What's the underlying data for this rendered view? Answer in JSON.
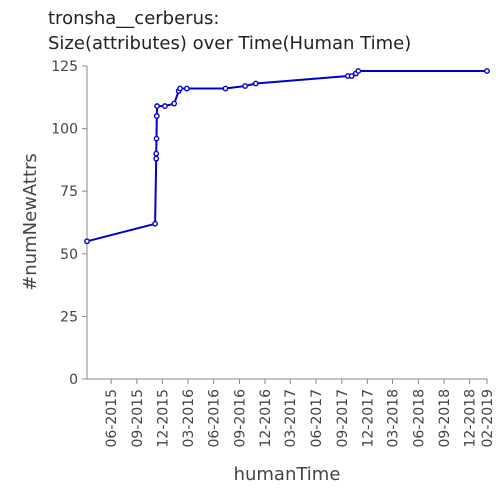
{
  "chart_data": {
    "type": "line",
    "title": "tronsha__cerberus:",
    "subtitle": "Size(attributes) over Time(Human Time)",
    "xlabel": "humanTime",
    "ylabel": "#numNewAttrs",
    "ylim": [
      0,
      125
    ],
    "xlim": [
      "2015-03-07",
      "2019-02-01"
    ],
    "y_ticks": [
      0,
      25,
      50,
      75,
      100,
      125
    ],
    "x_ticks": [
      "06-2015",
      "09-2015",
      "12-2015",
      "03-2016",
      "06-2016",
      "09-2016",
      "12-2016",
      "03-2017",
      "06-2017",
      "09-2017",
      "12-2017",
      "03-2018",
      "06-2018",
      "09-2018",
      "12-2018",
      "02-2019"
    ],
    "x_tick_dates": [
      "2015-06-01",
      "2015-09-01",
      "2015-12-01",
      "2016-03-01",
      "2016-06-01",
      "2016-09-01",
      "2016-12-01",
      "2017-03-01",
      "2017-06-01",
      "2017-09-01",
      "2017-12-01",
      "2018-03-01",
      "2018-06-01",
      "2018-09-01",
      "2018-12-01",
      "2019-02-01"
    ],
    "grid": false,
    "series": [
      {
        "color": "#0000cc",
        "points": [
          {
            "x": "2015-03-07",
            "y": 55
          },
          {
            "x": "2015-11-05",
            "y": 62
          },
          {
            "x": "2015-11-09",
            "y": 88
          },
          {
            "x": "2015-11-09",
            "y": 90
          },
          {
            "x": "2015-11-10",
            "y": 96
          },
          {
            "x": "2015-11-11",
            "y": 105
          },
          {
            "x": "2015-11-12",
            "y": 109
          },
          {
            "x": "2015-12-10",
            "y": 109
          },
          {
            "x": "2016-01-12",
            "y": 110
          },
          {
            "x": "2016-01-28",
            "y": 115
          },
          {
            "x": "2016-02-02",
            "y": 116
          },
          {
            "x": "2016-02-26",
            "y": 116
          },
          {
            "x": "2016-07-13",
            "y": 116
          },
          {
            "x": "2016-09-21",
            "y": 117
          },
          {
            "x": "2016-10-29",
            "y": 118
          },
          {
            "x": "2017-09-23",
            "y": 121
          },
          {
            "x": "2017-10-06",
            "y": 121
          },
          {
            "x": "2017-10-21",
            "y": 122
          },
          {
            "x": "2017-10-30",
            "y": 123
          },
          {
            "x": "2019-02-01",
            "y": 123
          }
        ]
      }
    ]
  }
}
